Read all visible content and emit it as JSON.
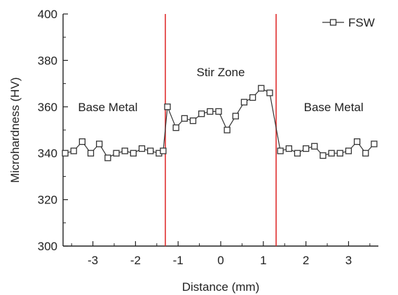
{
  "chart_data": {
    "type": "line",
    "xlabel": "Distance (mm)",
    "ylabel": "Microhardness (HV)",
    "xlim": [
      -3.7,
      3.7
    ],
    "ylim": [
      300,
      400
    ],
    "x_ticks": [
      -3,
      -2,
      -1,
      0,
      1,
      2,
      3
    ],
    "y_ticks": [
      300,
      320,
      340,
      360,
      380,
      400
    ],
    "grid": false,
    "legend_position": "top-right",
    "series": [
      {
        "name": "FSW",
        "color": "#333333",
        "marker": "open-square",
        "x": [
          -3.65,
          -3.45,
          -3.25,
          -3.05,
          -2.85,
          -2.65,
          -2.45,
          -2.25,
          -2.05,
          -1.85,
          -1.65,
          -1.45,
          -1.35,
          -1.25,
          -1.05,
          -0.85,
          -0.65,
          -0.45,
          -0.25,
          -0.05,
          0.15,
          0.35,
          0.55,
          0.75,
          0.95,
          1.15,
          1.4,
          1.6,
          1.8,
          2.0,
          2.2,
          2.4,
          2.6,
          2.8,
          3.0,
          3.2,
          3.4,
          3.6
        ],
        "y": [
          340,
          341,
          345,
          340,
          344,
          338,
          340,
          341,
          340,
          342,
          341,
          340,
          341,
          360,
          351,
          355,
          354,
          357,
          358,
          358,
          350,
          356,
          362,
          364,
          368,
          366,
          341,
          342,
          340,
          342,
          343,
          339,
          340,
          340,
          341,
          345,
          340,
          344
        ]
      }
    ],
    "vlines": [
      {
        "x": -1.3,
        "color": "#e03030"
      },
      {
        "x": 1.3,
        "color": "#e03030"
      }
    ],
    "annotations": [
      {
        "text": "Base Metal",
        "x": -2.65,
        "y": 360
      },
      {
        "text": "Stir Zone",
        "x": 0.0,
        "y": 375
      },
      {
        "text": "Base Metal",
        "x": 2.65,
        "y": 360
      }
    ]
  }
}
